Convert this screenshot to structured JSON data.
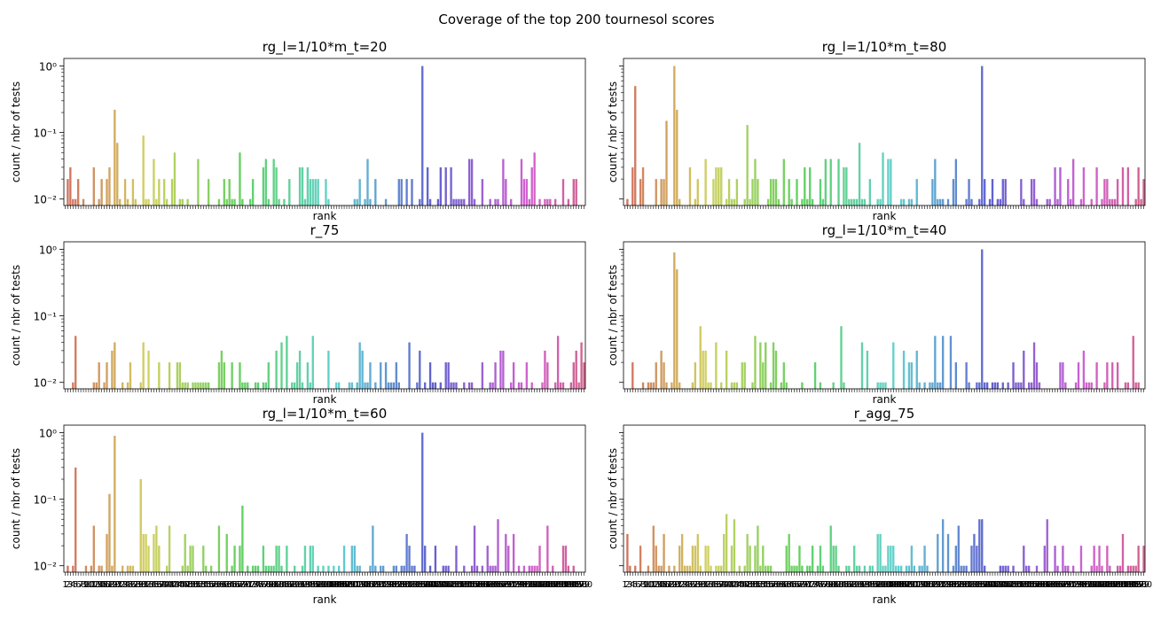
{
  "figure": {
    "title": "Coverage of the top 200 tournesol scores"
  },
  "chart_data": [
    {
      "type": "bar",
      "title": "rg_l=1/10*m_t=20",
      "xlabel": "rank",
      "ylabel": "count / nbr of tests",
      "yscale": "log",
      "ylim": [
        0.008,
        1.3
      ],
      "yticks": [
        "10⁻²",
        "10⁻¹",
        "10⁰"
      ],
      "x_range": [
        1,
        200
      ],
      "show_xtick_labels": false,
      "peaks": [
        {
          "rank": 20,
          "value": 0.22
        },
        {
          "rank": 21,
          "value": 0.07
        },
        {
          "rank": 31,
          "value": 0.09
        },
        {
          "rank": 43,
          "value": 0.05
        },
        {
          "rank": 138,
          "value": 1.0
        }
      ]
    },
    {
      "type": "bar",
      "title": "rg_l=1/10*m_t=80",
      "xlabel": "rank",
      "ylabel": "count / nbr of tests",
      "yscale": "log",
      "ylim": [
        0.008,
        1.3
      ],
      "yticks": [
        "10⁻²",
        "10⁻¹",
        "10⁰"
      ],
      "x_range": [
        1,
        200
      ],
      "show_xtick_labels": false,
      "peaks": [
        {
          "rank": 5,
          "value": 0.5
        },
        {
          "rank": 20,
          "value": 1.0
        },
        {
          "rank": 21,
          "value": 0.22
        },
        {
          "rank": 17,
          "value": 0.15
        },
        {
          "rank": 48,
          "value": 0.13
        },
        {
          "rank": 91,
          "value": 0.07
        },
        {
          "rank": 138,
          "value": 1.0
        }
      ]
    },
    {
      "type": "bar",
      "title": "r_75",
      "xlabel": "rank",
      "ylabel": "count / nbr of tests",
      "yscale": "log",
      "ylim": [
        0.008,
        1.3
      ],
      "yticks": [
        "10⁻²",
        "10⁻¹",
        "10⁰"
      ],
      "x_range": [
        1,
        200
      ],
      "show_xtick_labels": false,
      "peaks": [
        {
          "rank": 5,
          "value": 0.05
        },
        {
          "rank": 20,
          "value": 0.04
        },
        {
          "rank": 31,
          "value": 0.04
        },
        {
          "rank": 84,
          "value": 0.04
        },
        {
          "rank": 199,
          "value": 0.04
        }
      ]
    },
    {
      "type": "bar",
      "title": "rg_l=1/10*m_t=40",
      "xlabel": "rank",
      "ylabel": "count / nbr of tests",
      "yscale": "log",
      "ylim": [
        0.008,
        1.3
      ],
      "yticks": [
        "10⁻²",
        "10⁻¹",
        "10⁰"
      ],
      "x_range": [
        1,
        200
      ],
      "show_xtick_labels": false,
      "peaks": [
        {
          "rank": 20,
          "value": 0.9
        },
        {
          "rank": 21,
          "value": 0.5
        },
        {
          "rank": 30,
          "value": 0.07
        },
        {
          "rank": 84,
          "value": 0.07
        },
        {
          "rank": 138,
          "value": 1.0
        }
      ]
    },
    {
      "type": "bar",
      "title": "rg_l=1/10*m_t=60",
      "xlabel": "rank",
      "ylabel": "count / nbr of tests",
      "yscale": "log",
      "ylim": [
        0.008,
        1.3
      ],
      "yticks": [
        "10⁻²",
        "10⁻¹",
        "10⁰"
      ],
      "x_range": [
        1,
        200
      ],
      "show_xtick_labels": true,
      "peaks": [
        {
          "rank": 5,
          "value": 0.3
        },
        {
          "rank": 20,
          "value": 0.9
        },
        {
          "rank": 18,
          "value": 0.12
        },
        {
          "rank": 30,
          "value": 0.2
        },
        {
          "rank": 69,
          "value": 0.08
        },
        {
          "rank": 138,
          "value": 1.0
        }
      ]
    },
    {
      "type": "bar",
      "title": "r_agg_75",
      "xlabel": "rank",
      "ylabel": "count / nbr of tests",
      "yscale": "log",
      "ylim": [
        0.008,
        1.3
      ],
      "yticks": [
        "10⁻²",
        "10⁻¹",
        "10⁰"
      ],
      "x_range": [
        1,
        200
      ],
      "show_xtick_labels": true,
      "peaks": [
        {
          "rank": 12,
          "value": 0.04
        },
        {
          "rank": 40,
          "value": 0.06
        },
        {
          "rank": 138,
          "value": 0.05
        },
        {
          "rank": 163,
          "value": 0.05
        }
      ]
    }
  ]
}
